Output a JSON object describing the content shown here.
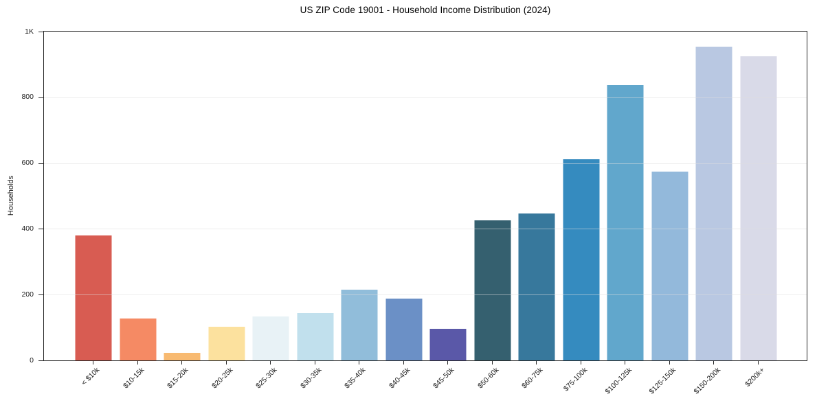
{
  "figure": {
    "background": "#ffffff",
    "colors": {
      "spine": "#262626",
      "grid": "#e8e8e8",
      "text": "#1a1a1a"
    }
  },
  "chart_data": {
    "type": "bar",
    "title": "US ZIP Code 19001 - Household Income Distribution (2024)",
    "xlabel": "",
    "ylabel": "Households",
    "ylim": [
      0,
      1000
    ],
    "grid": "horizontal-only",
    "grid_above_bars": true,
    "legend": "none",
    "ytick_values": [
      0,
      200,
      400,
      600,
      800,
      1000
    ],
    "ytick_labels": [
      "0",
      "200",
      "400",
      "600",
      "800",
      "1K"
    ],
    "xtick_rotation_deg": 45,
    "categories": [
      "< $10k",
      "$10-15k",
      "$15-20k",
      "$20-25k",
      "$25-30k",
      "$30-35k",
      "$35-40k",
      "$40-45k",
      "$45-50k",
      "$50-60k",
      "$60-75k",
      "$75-100k",
      "$100-125k",
      "$125-150k",
      "$150-200k",
      "$200k+"
    ],
    "values": [
      380,
      127,
      23,
      102,
      133,
      144,
      215,
      188,
      96,
      425,
      447,
      611,
      838,
      574,
      955,
      924
    ],
    "bar_colors": [
      "#d85c52",
      "#f58a64",
      "#f8ba71",
      "#fce19e",
      "#e8f2f6",
      "#c1e0ed",
      "#91bdda",
      "#6b90c6",
      "#5a58a8",
      "#35606f",
      "#37789c",
      "#358bbf",
      "#61a7cc",
      "#93b9db",
      "#b9c8e2",
      "#d9dae8"
    ]
  }
}
